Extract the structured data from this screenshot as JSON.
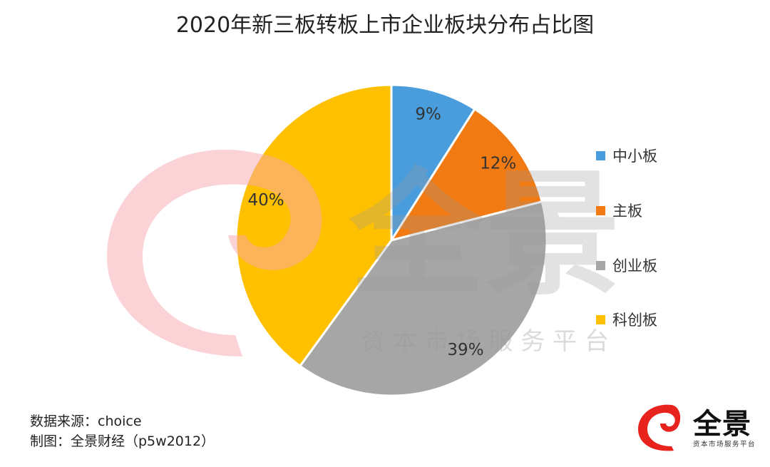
{
  "chart_data": {
    "type": "pie",
    "title": "2020年新三板转板上市企业板块分布占比图",
    "start_angle": "12 o'clock",
    "direction": "clockwise",
    "categories": [
      "中小板",
      "主板",
      "创业板",
      "科创板"
    ],
    "values": [
      9,
      12,
      39,
      40
    ],
    "data_labels": [
      "9%",
      "12%",
      "39%",
      "40%"
    ],
    "colors": [
      "#4a9ddc",
      "#f27a12",
      "#a6a6a6",
      "#ffc000"
    ],
    "legend_position": "right"
  },
  "notes": {
    "source": "数据来源：choice",
    "made_by": "制图：全景财经（p5w2012）"
  },
  "watermark": {
    "name": "全景",
    "tagline": "资 本 市 场 服 务 平 台"
  },
  "logo": {
    "name": "全景",
    "tagline": "资本市场服务平台",
    "color": "#e8231e"
  }
}
